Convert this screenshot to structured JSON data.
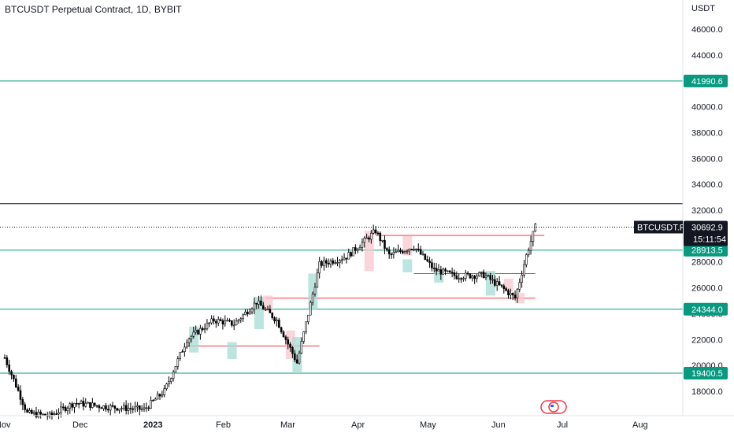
{
  "header": {
    "symbol": "BTCUSDT Perpetual Contract",
    "interval": "1D",
    "exchange": "BYBIT"
  },
  "price_axis": {
    "currency": "USDT",
    "ticks": [
      "46000.0",
      "44000.0",
      "42000.0",
      "40000.0",
      "38000.0",
      "36000.0",
      "34000.0",
      "32000.0",
      "30000.0",
      "28000.0",
      "26000.0",
      "24000.0",
      "22000.0",
      "20000.0",
      "18000.0"
    ]
  },
  "time_axis": {
    "labels": [
      "Nov",
      "Dec",
      "2023",
      "Feb",
      "Mar",
      "Apr",
      "May",
      "Jun",
      "Jul",
      "Aug"
    ]
  },
  "price_tags": {
    "symbol_tag": "BTCUSDT.P",
    "last_price": "30692.9",
    "countdown": "15:11:54",
    "level_1": "41990.6",
    "level_2": "28913.5",
    "level_3": "24344.0",
    "level_4": "19400.5"
  },
  "colors": {
    "teal_line": "#089981",
    "red_line": "#f23645",
    "candle": "#000000",
    "tag_dark": "#131722",
    "zone_green": "#a7dcd4",
    "zone_red": "#f8c8cd"
  },
  "chart_data": {
    "type": "candlestick",
    "x_dates": [
      "2022-10-31",
      "2022-11-10",
      "2022-11-20",
      "2022-12-01",
      "2022-12-15",
      "2023-01-01",
      "2023-01-10",
      "2023-01-20",
      "2023-02-01",
      "2023-02-10",
      "2023-02-20",
      "2023-03-01",
      "2023-03-10",
      "2023-03-20",
      "2023-04-01",
      "2023-04-14",
      "2023-04-20",
      "2023-05-01",
      "2023-05-10",
      "2023-05-20",
      "2023-06-01",
      "2023-06-10",
      "2023-06-15",
      "2023-06-20",
      "2023-06-24"
    ],
    "close_path": [
      20600,
      16300,
      16100,
      17100,
      16800,
      16600,
      18000,
      22000,
      23500,
      23200,
      24900,
      23500,
      20200,
      27800,
      28400,
      30400,
      28500,
      29200,
      27400,
      26900,
      27000,
      25900,
      25200,
      28500,
      30700
    ],
    "horizontal_levels": [
      41990.6,
      28913.5,
      24344.0,
      19400.5
    ],
    "resistance_line": 32500,
    "zone_lines": [
      {
        "price": 21500,
        "from": "2023-01-20",
        "to": "2023-03-20"
      },
      {
        "price": 25200,
        "from": "2023-02-24",
        "to": "2023-06-24"
      },
      {
        "price": 27100,
        "from": "2023-05-01",
        "to": "2023-06-24"
      },
      {
        "price": 30050,
        "from": "2023-04-14",
        "to": "2023-06-28"
      }
    ],
    "ylim": [
      15500,
      47500
    ]
  }
}
